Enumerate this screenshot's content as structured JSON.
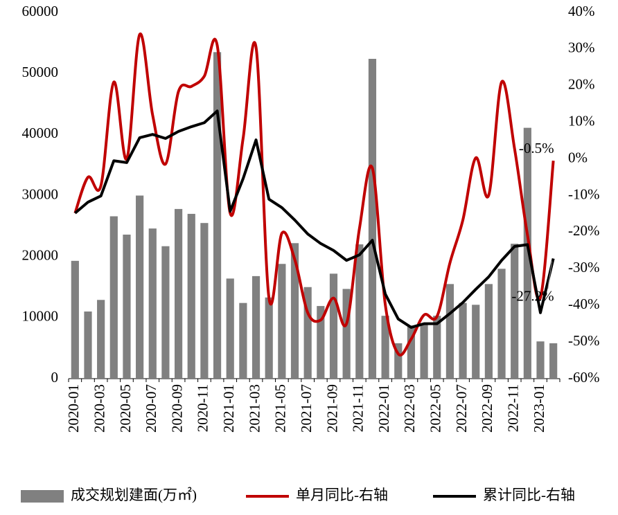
{
  "chart_data": {
    "type": "bar",
    "categories": [
      "2020-01",
      null,
      "2020-03",
      null,
      "2020-05",
      null,
      "2020-07",
      null,
      "2020-09",
      null,
      "2020-11",
      null,
      "2021-01",
      null,
      "2021-03",
      null,
      "2021-05",
      null,
      "2021-07",
      null,
      "2021-09",
      null,
      "2021-11",
      null,
      "2022-01",
      null,
      "2022-03",
      null,
      "2022-05",
      null,
      "2022-07",
      null,
      "2022-09",
      null,
      "2022-11",
      null,
      "2023-01",
      null
    ],
    "series": [
      {
        "name": "成交规划建面(万㎡)",
        "type": "bar",
        "color": "#808080",
        "values": [
          19300,
          11000,
          12900,
          26600,
          23600,
          30000,
          24600,
          21700,
          27800,
          27000,
          25500,
          53500,
          16400,
          12400,
          16800,
          13300,
          18800,
          22200,
          15000,
          11900,
          17200,
          14700,
          22000,
          52400,
          10300,
          5800,
          8700,
          9000,
          10300,
          15500,
          12400,
          12100,
          15500,
          18000,
          22100,
          41100,
          6100,
          5800
        ]
      },
      {
        "name": "单月同比-右轴",
        "type": "line",
        "axis": "y2",
        "smooth": true,
        "color": "#c00000",
        "values": [
          -14.8,
          -5,
          -7.3,
          21,
          0,
          34,
          12,
          -1.4,
          18.4,
          19.8,
          22.6,
          31,
          -14.8,
          5.6,
          30.5,
          -37.9,
          -20.3,
          -27.5,
          -42,
          -44,
          -38,
          -45,
          -19,
          -2.5,
          -39.8,
          -53.2,
          -49.2,
          -42.6,
          -43,
          -28.4,
          -16.7,
          0.3,
          -9.9,
          21,
          2.8,
          -20.8,
          -37.9,
          -0.5
        ],
        "value_labels": [
          null,
          null,
          null,
          null,
          null,
          null,
          null,
          null,
          null,
          null,
          null,
          null,
          null,
          null,
          null,
          null,
          null,
          null,
          null,
          null,
          null,
          null,
          null,
          null,
          null,
          null,
          null,
          null,
          null,
          null,
          null,
          null,
          null,
          null,
          null,
          null,
          null,
          "-0.5%"
        ]
      },
      {
        "name": "累计同比-右轴",
        "type": "line",
        "axis": "y2",
        "smooth": false,
        "color": "#000000",
        "values": [
          -14.8,
          -11.8,
          -10.1,
          -0.5,
          -1,
          5.8,
          6.7,
          5.6,
          7.5,
          8.8,
          9.9,
          13.1,
          -14.3,
          -5.4,
          5.2,
          -11,
          -13.3,
          -16.7,
          -20.5,
          -23.1,
          -25,
          -27.7,
          -26.2,
          -22.2,
          -36.9,
          -43.7,
          -46,
          -45,
          -45,
          -42.2,
          -39.2,
          -35.6,
          -32.2,
          -27.7,
          -23.9,
          -23.4,
          -42,
          -27.2
        ],
        "value_labels": [
          null,
          null,
          null,
          null,
          null,
          null,
          null,
          null,
          null,
          null,
          null,
          null,
          null,
          null,
          null,
          null,
          null,
          null,
          null,
          null,
          null,
          null,
          null,
          null,
          null,
          null,
          null,
          null,
          null,
          null,
          null,
          null,
          null,
          null,
          null,
          null,
          null,
          "-27.2%"
        ]
      }
    ],
    "ylim": [
      0,
      60000
    ],
    "yticks": [
      0,
      10000,
      20000,
      30000,
      40000,
      50000,
      60000
    ],
    "y2lim": [
      -60,
      40
    ],
    "y2ticks": [
      {
        "value": -60,
        "label": "-60%"
      },
      {
        "value": -50,
        "label": "-50%"
      },
      {
        "value": -40,
        "label": "-40%"
      },
      {
        "value": -30,
        "label": "-30%"
      },
      {
        "value": -20,
        "label": "-20%"
      },
      {
        "value": -10,
        "label": "-10%"
      },
      {
        "value": 0,
        "label": "0%"
      },
      {
        "value": 10,
        "label": "10%"
      },
      {
        "value": 20,
        "label": "20%"
      },
      {
        "value": 30,
        "label": "30%"
      },
      {
        "value": 40,
        "label": "40%"
      }
    ],
    "grid": false,
    "legend": "bottom"
  }
}
